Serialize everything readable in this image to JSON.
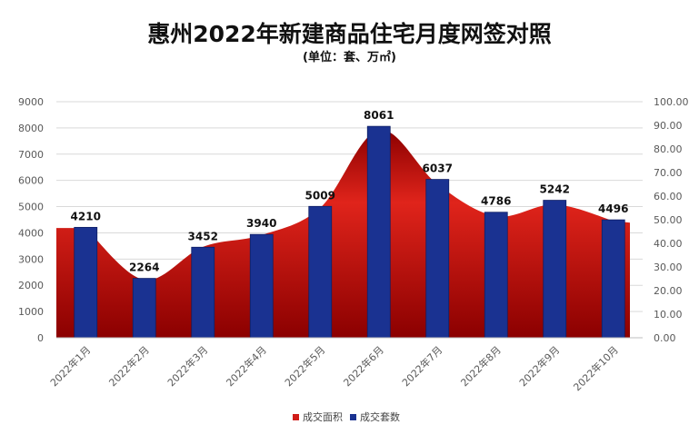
{
  "title": "惠州2022年新建商品住宅月度网签对照",
  "subtitle": "(单位：套、万㎡)",
  "colors": {
    "area_dark": "#8b0000",
    "area_light": "#e0241b",
    "bar": "#1a3291",
    "bar_edge": "#0f1f66",
    "grid": "#d9d9d9",
    "axis_text": "#595959"
  },
  "chart_data": {
    "type": "bar",
    "categories": [
      "2022年1月",
      "2022年2月",
      "2022年3月",
      "2022年4月",
      "2022年5月",
      "2022年6月",
      "2022年7月",
      "2022年8月",
      "2022年9月",
      "2022年10月"
    ],
    "series": [
      {
        "name": "成交套数",
        "type": "bar",
        "axis": "left",
        "values": [
          4210,
          2264,
          3452,
          3940,
          5009,
          8061,
          6037,
          4786,
          5242,
          4496
        ],
        "labels": [
          "4210",
          "2264",
          "3452",
          "3940",
          "5009",
          "8061",
          "6037",
          "4786",
          "5242",
          "4496"
        ]
      },
      {
        "name": "成交面积",
        "type": "area",
        "axis": "right",
        "values": [
          46.5,
          24.5,
          38.5,
          43.5,
          55.0,
          88.0,
          65.0,
          51.5,
          56.5,
          49.5
        ]
      }
    ],
    "left_axis": {
      "min": 0,
      "max": 9000,
      "ticks": [
        "0",
        "1000",
        "2000",
        "3000",
        "4000",
        "5000",
        "6000",
        "7000",
        "8000",
        "9000"
      ]
    },
    "right_axis": {
      "min": 0,
      "max": 100,
      "ticks": [
        "0.00",
        "10.00",
        "20.00",
        "30.00",
        "40.00",
        "50.00",
        "60.00",
        "70.00",
        "80.00",
        "90.00",
        "100.00"
      ]
    },
    "legend": {
      "position": "bottom",
      "items": [
        {
          "label": "成交面积",
          "color": "#d01c17"
        },
        {
          "label": "成交套数",
          "color": "#1a3291"
        }
      ]
    },
    "grid": true
  }
}
